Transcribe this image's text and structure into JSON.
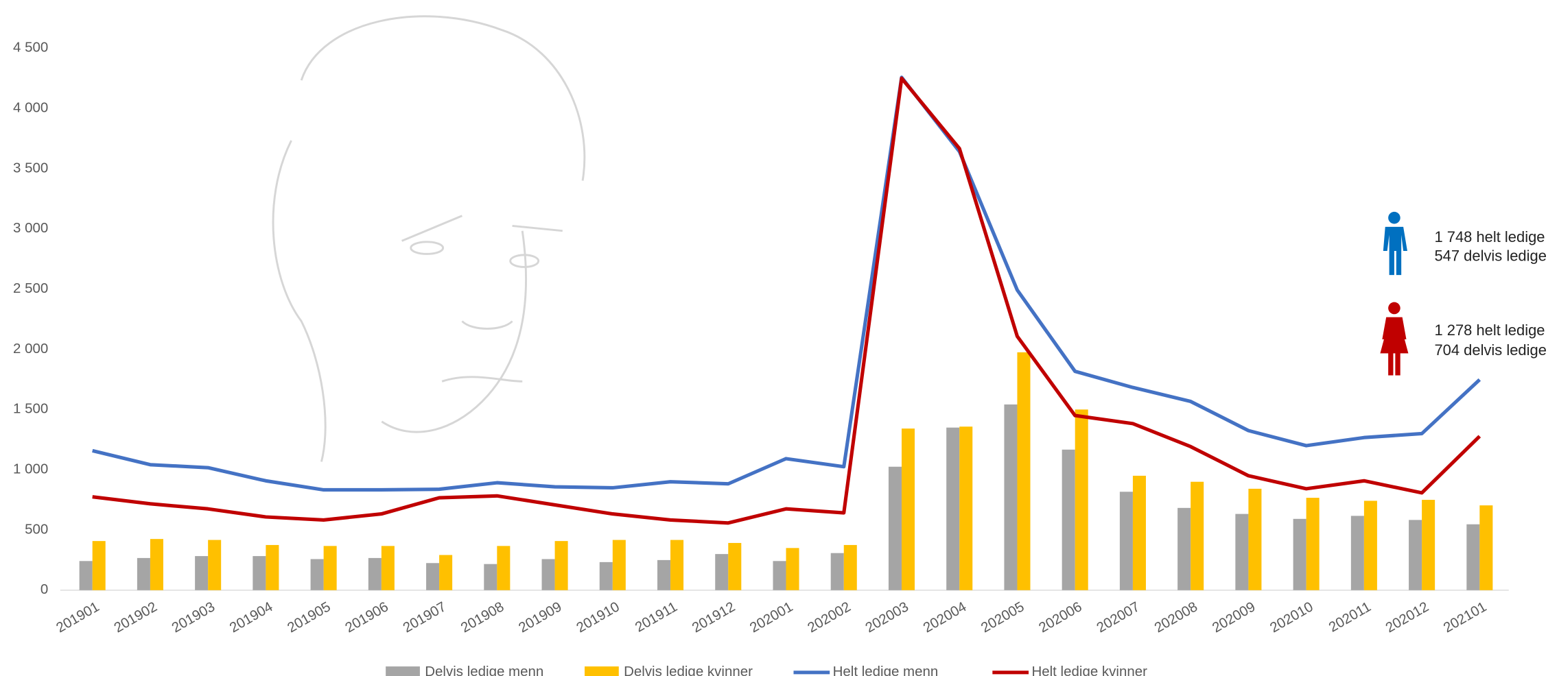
{
  "chart_data": {
    "type": "bar_line",
    "categories": [
      "201901",
      "201902",
      "201903",
      "201904",
      "201905",
      "201906",
      "201907",
      "201908",
      "201909",
      "201910",
      "201911",
      "201912",
      "202001",
      "202002",
      "202003",
      "202004",
      "202005",
      "202006",
      "202007",
      "202008",
      "202009",
      "202010",
      "202011",
      "202012",
      "202101"
    ],
    "series": [
      {
        "name": "Delvis ledige menn",
        "kind": "bar",
        "color": "#a5a5a5",
        "values": [
          242,
          267,
          283,
          283,
          258,
          267,
          225,
          217,
          258,
          233,
          250,
          300,
          242,
          308,
          1025,
          1350,
          1542,
          1167,
          817,
          683,
          633,
          592,
          617,
          583,
          547
        ]
      },
      {
        "name": "Delvis ledige kvinner",
        "kind": "bar",
        "color": "#ffc000",
        "values": [
          408,
          425,
          417,
          375,
          367,
          367,
          292,
          367,
          408,
          417,
          417,
          392,
          350,
          375,
          1342,
          1358,
          1975,
          1500,
          950,
          900,
          842,
          767,
          742,
          750,
          704
        ]
      },
      {
        "name": "Helt ledige menn",
        "kind": "line",
        "color": "#4472c4",
        "values": [
          1158,
          1042,
          1017,
          908,
          833,
          833,
          838,
          892,
          858,
          850,
          900,
          883,
          1092,
          1025,
          4258,
          3642,
          2492,
          1817,
          1683,
          1567,
          1325,
          1200,
          1267,
          1300,
          1748
        ]
      },
      {
        "name": "Helt ledige kvinner",
        "kind": "line",
        "color": "#c00000",
        "values": [
          775,
          717,
          675,
          608,
          583,
          633,
          767,
          783,
          708,
          633,
          583,
          558,
          675,
          642,
          4250,
          3667,
          2108,
          1450,
          1383,
          1192,
          950,
          842,
          908,
          808,
          1278
        ]
      }
    ],
    "ylim": [
      0,
      4500
    ],
    "yticks": [
      0,
      500,
      {
        "value": 1000,
        "label": "1 000"
      },
      {
        "value": 1500,
        "label": "1 500"
      },
      {
        "value": 2000,
        "label": "2 000"
      },
      {
        "value": 2500,
        "label": "2 500"
      },
      {
        "value": 3000,
        "label": "3 000"
      },
      {
        "value": 3500,
        "label": "3 500"
      },
      {
        "value": 4000,
        "label": "4 000"
      },
      {
        "value": 4500,
        "label": "4 500"
      }
    ],
    "grid": false,
    "legend": "bottom",
    "annotations": {
      "men": [
        "1 748 helt ledige",
        "547 delvis ledige"
      ],
      "women": [
        "1 278 helt ledige",
        "704 delvis ledige"
      ]
    }
  }
}
